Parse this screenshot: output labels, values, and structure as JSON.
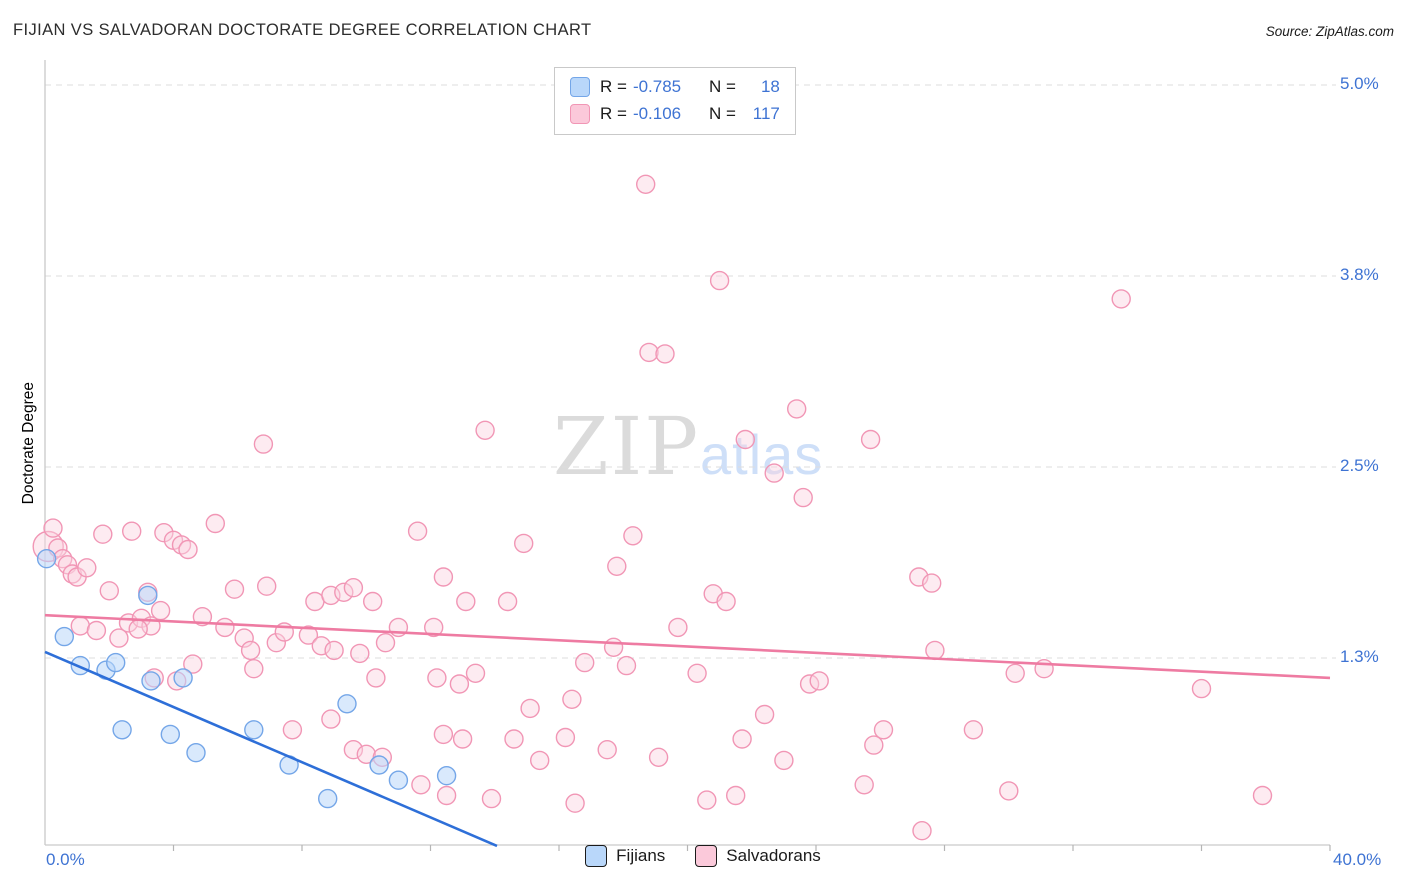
{
  "title": "FIJIAN VS SALVADORAN DOCTORATE DEGREE CORRELATION CHART",
  "source": "Source: ZipAtlas.com",
  "watermark": {
    "zip": "ZIP",
    "atlas": "atlas"
  },
  "legend_box": {
    "series": [
      {
        "r_label": "R =",
        "r_value": "-0.785",
        "n_label": "N =",
        "n_value": "18"
      },
      {
        "r_label": "R =",
        "r_value": "-0.106",
        "n_label": "N =",
        "n_value": "117"
      }
    ]
  },
  "axes": {
    "y_title": "Doctorate Degree",
    "x_min_label": "0.0%",
    "x_max_label": "40.0%",
    "y_tick_labels": [
      "5.0%",
      "3.8%",
      "2.5%",
      "1.3%"
    ]
  },
  "bottom_legend": [
    {
      "label": "Fijians"
    },
    {
      "label": "Salvadorans"
    }
  ],
  "colors": {
    "axis_label_blue": "#3e73d3",
    "fijian_fill": "#b9d7fa",
    "fijian_stroke": "#74a6e8",
    "fijian_trend": "#2e6fd8",
    "salvadoran_fill": "#fbd3e0",
    "salvadoran_stroke": "#f196b5",
    "salvadoran_trend": "#ee7ba2"
  },
  "chart_data": {
    "type": "scatter",
    "title": "FIJIAN VS SALVADORAN DOCTORATE DEGREE CORRELATION CHART",
    "xlabel": "",
    "ylabel": "Doctorate Degree",
    "x_range": [
      0,
      40
    ],
    "y_range": [
      0,
      5.2
    ],
    "grid": true,
    "legend_position": "bottom",
    "y_gridlines": [
      {
        "value": 5.0,
        "label": "5.0%"
      },
      {
        "value": 3.75,
        "label": "3.8%"
      },
      {
        "value": 2.5,
        "label": "2.5%"
      },
      {
        "value": 1.25,
        "label": "1.3%"
      }
    ],
    "x_ticks": [
      4,
      8,
      12,
      16,
      20,
      24,
      28,
      32,
      36,
      40
    ],
    "series": [
      {
        "name": "Salvadorans",
        "R": -0.106,
        "N": 117,
        "fill": "#fbd3e0",
        "stroke": "#f196b5",
        "fill_opacity": 0.45,
        "trend_color": "#ee7ba2",
        "trend": [
          0,
          1.53,
          40,
          1.12
        ],
        "points": [
          [
            0.1,
            1.98,
            15
          ],
          [
            0.25,
            2.1
          ],
          [
            0.4,
            1.97
          ],
          [
            0.55,
            1.9
          ],
          [
            0.7,
            1.86
          ],
          [
            0.85,
            1.8
          ],
          [
            1.0,
            1.78
          ],
          [
            1.3,
            1.84
          ],
          [
            1.8,
            2.06
          ],
          [
            2.7,
            2.08
          ],
          [
            2.0,
            1.69
          ],
          [
            1.1,
            1.46
          ],
          [
            1.6,
            1.43
          ],
          [
            2.3,
            1.38
          ],
          [
            2.6,
            1.48
          ],
          [
            3.0,
            1.51
          ],
          [
            3.3,
            1.46
          ],
          [
            3.2,
            1.68
          ],
          [
            3.6,
            1.56
          ],
          [
            3.7,
            2.07
          ],
          [
            4.0,
            2.02
          ],
          [
            4.25,
            1.99
          ],
          [
            4.45,
            1.96
          ],
          [
            2.9,
            1.44
          ],
          [
            3.4,
            1.12
          ],
          [
            4.1,
            1.1
          ],
          [
            4.6,
            1.21
          ],
          [
            4.9,
            1.52
          ],
          [
            5.3,
            2.13
          ],
          [
            5.6,
            1.45
          ],
          [
            5.9,
            1.7
          ],
          [
            6.2,
            1.38
          ],
          [
            6.4,
            1.3
          ],
          [
            6.8,
            2.65
          ],
          [
            6.9,
            1.72
          ],
          [
            7.2,
            1.35
          ],
          [
            7.45,
            1.42
          ],
          [
            6.5,
            1.18
          ],
          [
            7.7,
            0.78
          ],
          [
            8.2,
            1.4
          ],
          [
            8.4,
            1.62
          ],
          [
            8.6,
            1.33
          ],
          [
            8.9,
            1.66
          ],
          [
            9.0,
            1.3
          ],
          [
            9.3,
            1.68
          ],
          [
            9.6,
            1.71
          ],
          [
            9.8,
            1.28
          ],
          [
            8.9,
            0.85
          ],
          [
            9.6,
            0.65
          ],
          [
            10.0,
            0.62
          ],
          [
            10.2,
            1.62
          ],
          [
            10.6,
            1.35
          ],
          [
            11.0,
            1.45
          ],
          [
            10.3,
            1.12
          ],
          [
            37.9,
            0.35
          ],
          [
            11.6,
            2.08
          ],
          [
            10.5,
            0.6
          ],
          [
            11.7,
            0.42
          ],
          [
            12.1,
            1.45
          ],
          [
            12.4,
            1.78
          ],
          [
            13.1,
            1.62
          ],
          [
            12.2,
            1.12
          ],
          [
            12.9,
            1.08
          ],
          [
            13.4,
            1.15
          ],
          [
            12.4,
            0.75
          ],
          [
            13.0,
            0.72
          ],
          [
            12.5,
            0.35
          ],
          [
            13.9,
            0.33
          ],
          [
            13.7,
            2.74
          ],
          [
            14.4,
            1.62
          ],
          [
            14.9,
            2.0
          ],
          [
            14.6,
            0.72
          ],
          [
            15.1,
            0.92
          ],
          [
            15.4,
            0.58
          ],
          [
            16.2,
            0.73
          ],
          [
            16.4,
            0.98
          ],
          [
            16.5,
            0.3
          ],
          [
            16.8,
            1.22
          ],
          [
            17.5,
            0.65
          ],
          [
            17.7,
            1.32
          ],
          [
            17.8,
            1.85
          ],
          [
            18.3,
            2.05
          ],
          [
            18.1,
            1.2
          ],
          [
            18.7,
            4.35
          ],
          [
            18.8,
            3.25
          ],
          [
            19.3,
            3.24
          ],
          [
            19.1,
            0.6
          ],
          [
            19.7,
            1.45
          ],
          [
            20.3,
            1.15
          ],
          [
            20.6,
            0.32
          ],
          [
            20.8,
            1.67
          ],
          [
            21.0,
            3.72
          ],
          [
            21.2,
            1.62
          ],
          [
            21.5,
            0.35
          ],
          [
            21.7,
            0.72
          ],
          [
            21.8,
            2.68
          ],
          [
            22.4,
            0.88
          ],
          [
            22.7,
            2.46
          ],
          [
            23.0,
            0.58
          ],
          [
            23.4,
            2.88
          ],
          [
            23.6,
            2.3
          ],
          [
            23.8,
            1.08
          ],
          [
            24.1,
            1.1
          ],
          [
            25.5,
            0.42
          ],
          [
            25.7,
            2.68
          ],
          [
            25.8,
            0.68
          ],
          [
            26.1,
            0.78
          ],
          [
            27.2,
            1.78
          ],
          [
            27.6,
            1.74
          ],
          [
            27.7,
            1.3
          ],
          [
            27.3,
            0.12
          ],
          [
            28.9,
            0.78
          ],
          [
            30.0,
            0.38
          ],
          [
            30.2,
            1.15
          ],
          [
            31.1,
            1.18
          ],
          [
            33.5,
            3.6
          ],
          [
            36.0,
            1.05
          ]
        ]
      },
      {
        "name": "Fijians",
        "R": -0.785,
        "N": 18,
        "fill": "#b9d7fa",
        "stroke": "#74a6e8",
        "fill_opacity": 0.55,
        "trend_color": "#2e6fd8",
        "trend": [
          0,
          1.29,
          14.07,
          0.02
        ],
        "points": [
          [
            0.05,
            1.9
          ],
          [
            0.6,
            1.39
          ],
          [
            1.1,
            1.2
          ],
          [
            1.9,
            1.17
          ],
          [
            2.2,
            1.22
          ],
          [
            2.4,
            0.78
          ],
          [
            3.2,
            1.66
          ],
          [
            3.3,
            1.1
          ],
          [
            3.9,
            0.75
          ],
          [
            4.3,
            1.12
          ],
          [
            4.7,
            0.63
          ],
          [
            6.5,
            0.78
          ],
          [
            7.6,
            0.55
          ],
          [
            8.8,
            0.33
          ],
          [
            9.4,
            0.95
          ],
          [
            10.4,
            0.55
          ],
          [
            11.0,
            0.45
          ],
          [
            12.5,
            0.48
          ]
        ]
      }
    ]
  }
}
